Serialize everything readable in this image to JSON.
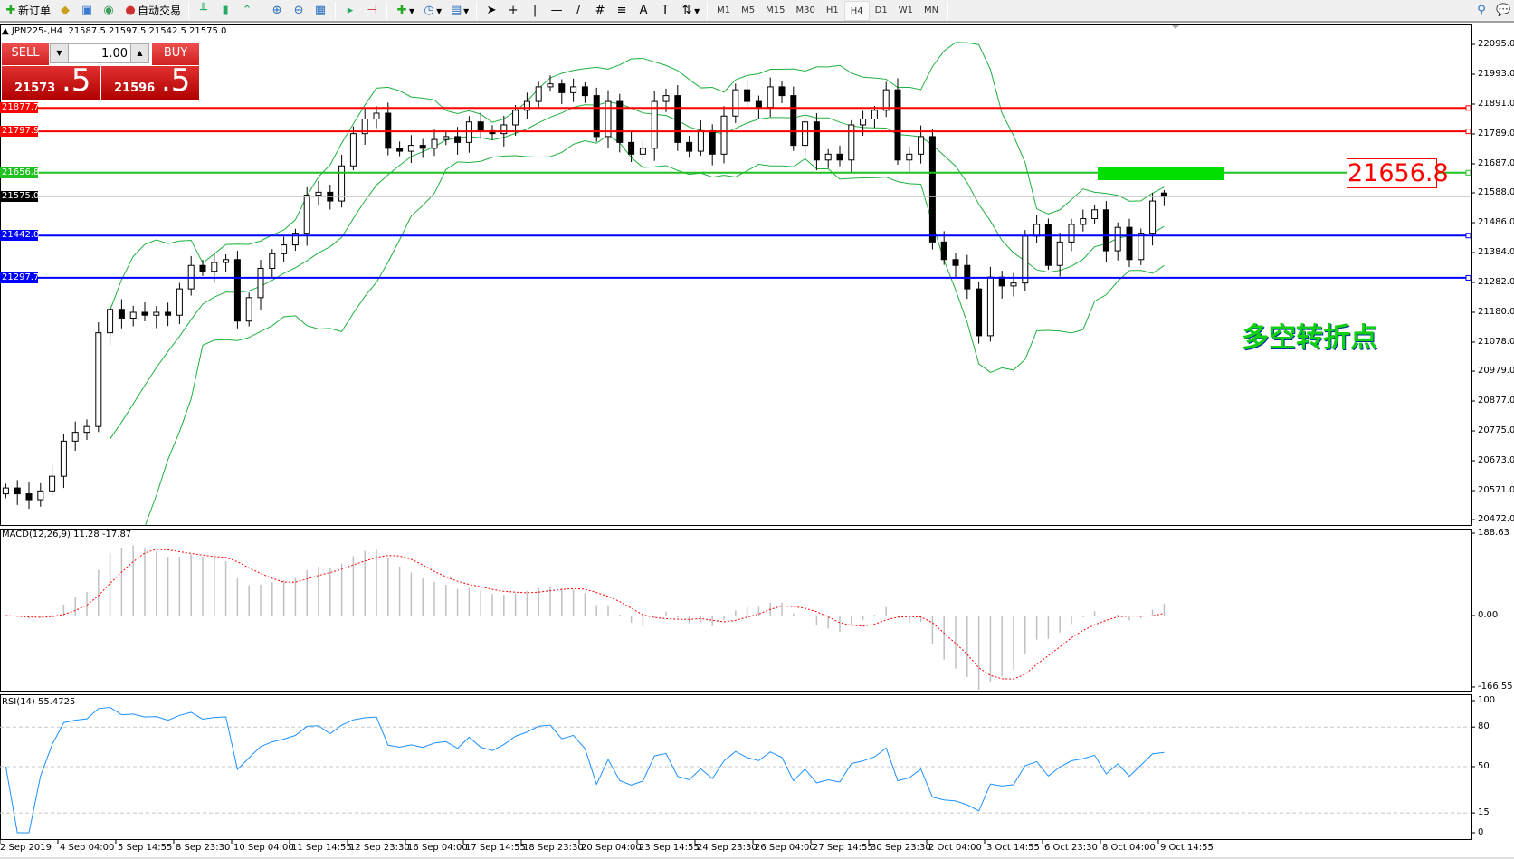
{
  "toolbar": {
    "new_order": "新订单",
    "auto_trading": "自动交易",
    "timeframes": [
      "M1",
      "M5",
      "M15",
      "M30",
      "H1",
      "H4",
      "D1",
      "W1",
      "MN"
    ],
    "active_timeframe": "H4"
  },
  "chart_header": {
    "symbol": "JPN225-,H4",
    "ohlc": "21587.5 21597.5 21542.5 21575.0"
  },
  "one_click": {
    "sell_label": "SELL",
    "buy_label": "BUY",
    "lot": "1.00",
    "sell_small": "21573",
    "sell_big": ".5",
    "buy_small": "21596",
    "buy_big": ".5"
  },
  "annotation_price": "21656.8",
  "annotation_text": "多空转折点",
  "colors": {
    "bands": "#20b040",
    "macd_signal": "#ff0000",
    "macd_hist": "#c0c0c0",
    "rsi": "#1e90ff",
    "highlight": "#00e000"
  },
  "chart_data": {
    "type": "candlestick",
    "last_bar": {
      "open": 21587.5,
      "high": 21597.5,
      "low": 21542.5,
      "close": 21575.0
    },
    "closes": [
      20580,
      20560,
      20540,
      20570,
      20620,
      20740,
      20770,
      20790,
      21110,
      21190,
      21160,
      21180,
      21170,
      21180,
      21170,
      21260,
      21340,
      21320,
      21350,
      21360,
      21150,
      21230,
      21330,
      21380,
      21410,
      21450,
      21580,
      21590,
      21560,
      21680,
      21790,
      21840,
      21860,
      21740,
      21730,
      21750,
      21740,
      21770,
      21780,
      21760,
      21830,
      21800,
      21790,
      21820,
      21870,
      21900,
      21950,
      21960,
      21930,
      21950,
      21920,
      21780,
      21900,
      21760,
      21720,
      21740,
      21900,
      21920,
      21760,
      21730,
      21800,
      21720,
      21850,
      21940,
      21900,
      21880,
      21950,
      21920,
      21750,
      21830,
      21700,
      21720,
      21700,
      21820,
      21840,
      21870,
      21940,
      21700,
      21720,
      21780,
      21420,
      21360,
      21340,
      21260,
      21100,
      21300,
      21270,
      21280,
      21440,
      21480,
      21340,
      21420,
      21480,
      21500,
      21530,
      21390,
      21470,
      21360,
      21450,
      21560,
      21575
    ],
    "price_ticks": [
      "22095.0",
      "21993.0",
      "21891.0",
      "21789.0",
      "21687.0",
      "21588.0",
      "21486.0",
      "21384.0",
      "21282.0",
      "21180.0",
      "21078.0",
      "20979.0",
      "20877.0",
      "20775.0",
      "20673.0",
      "20571.0",
      "20472.0"
    ],
    "price_range": [
      20472,
      22095
    ],
    "levels": [
      {
        "price": "21877.7",
        "color": "#ff0000"
      },
      {
        "price": "21797.9",
        "color": "#ff0000"
      },
      {
        "price": "21656.8",
        "color": "#20c020"
      },
      {
        "price": "21442.0",
        "color": "#0000ff"
      },
      {
        "price": "21297.7",
        "color": "#0000ff"
      }
    ],
    "current_price": "21575.0",
    "date_ticks": [
      "2 Sep 2019",
      "4 Sep 04:00",
      "5 Sep 14:55",
      "8 Sep 23:30",
      "10 Sep 04:00",
      "11 Sep 14:55",
      "12 Sep 23:30",
      "16 Sep 04:00",
      "17 Sep 14:55",
      "18 Sep 23:30",
      "20 Sep 04:00",
      "23 Sep 14:55",
      "24 Sep 23:30",
      "26 Sep 04:00",
      "27 Sep 14:55",
      "30 Sep 23:30",
      "2 Oct 04:00",
      "3 Oct 14:55",
      "6 Oct 23:30",
      "8 Oct 04:00",
      "9 Oct 14:55"
    ],
    "indicators": {
      "bands": "Bollinger Bands",
      "macd": {
        "label": "MACD(12,26,9) 11.28 -17.87",
        "ticks": [
          "188.63",
          "0.00",
          "-166.55"
        ],
        "range": [
          -166.55,
          188.63
        ]
      },
      "rsi": {
        "label": "RSI(14) 55.4725",
        "ticks": [
          "100",
          "80",
          "50",
          "15",
          "0"
        ],
        "levels": [
          80,
          50,
          15
        ]
      }
    }
  }
}
